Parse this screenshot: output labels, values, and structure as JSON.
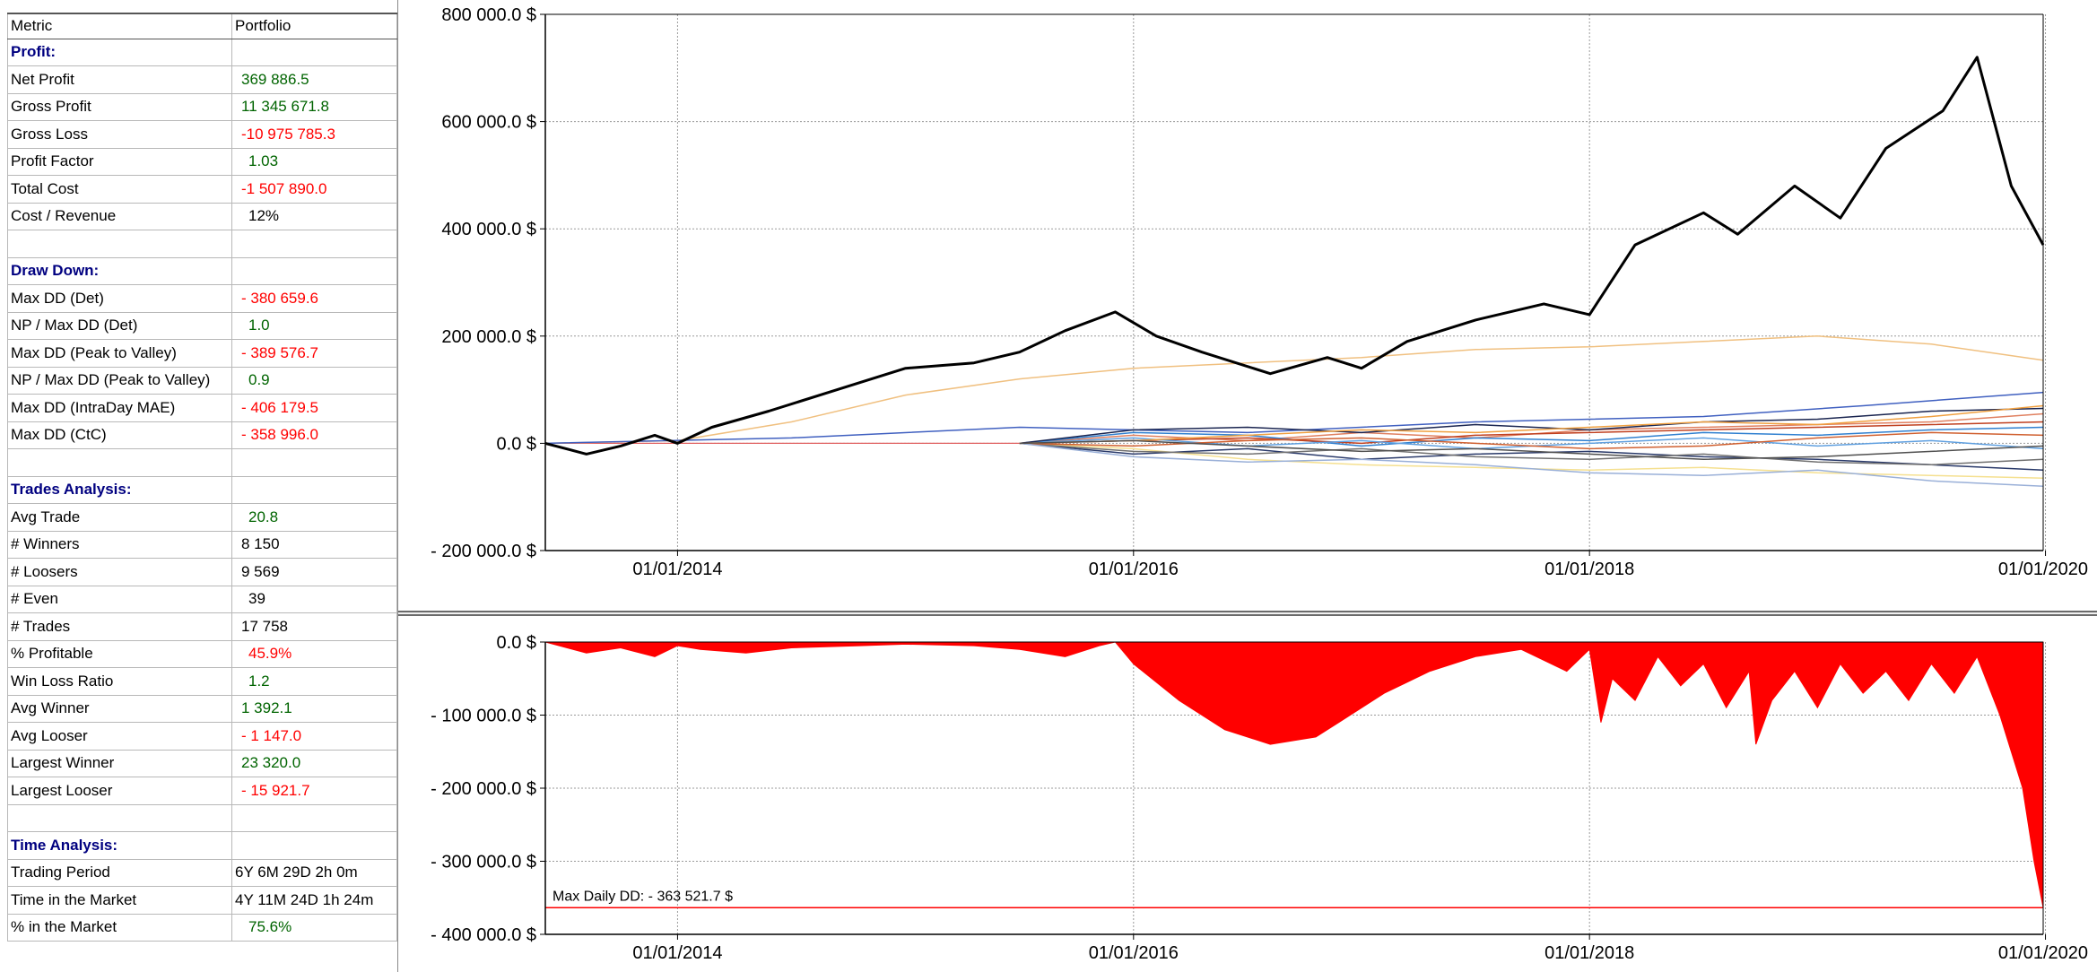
{
  "table": {
    "header": {
      "metric": "Metric",
      "portfolio": "Portfolio"
    },
    "rows": [
      {
        "type": "section",
        "label": "Profit:"
      },
      {
        "label": "Net Profit",
        "value": "369 886.5",
        "color": "green"
      },
      {
        "label": "Gross Profit",
        "value": "11 345 671.8",
        "color": "green"
      },
      {
        "label": "Gross Loss",
        "value": "-10 975 785.3",
        "color": "red"
      },
      {
        "label": "Profit Factor",
        "value": "1.03",
        "color": "green",
        "indent": true
      },
      {
        "label": "Total Cost",
        "value": "-1 507 890.0",
        "color": "red"
      },
      {
        "label": "Cost / Revenue",
        "value": "12%",
        "color": "black",
        "indent": true
      },
      {
        "type": "blank"
      },
      {
        "type": "section",
        "label": "Draw Down:"
      },
      {
        "label": "Max DD (Det)",
        "value": "- 380 659.6",
        "color": "red"
      },
      {
        "label": "NP / Max DD (Det)",
        "value": "1.0",
        "color": "green",
        "indent": true
      },
      {
        "label": "Max DD (Peak to Valley)",
        "value": "- 389 576.7",
        "color": "red"
      },
      {
        "label": "NP / Max DD (Peak to Valley)",
        "value": "0.9",
        "color": "green",
        "indent": true
      },
      {
        "label": "Max DD (IntraDay MAE)",
        "value": "- 406 179.5",
        "color": "red"
      },
      {
        "label": "Max DD (CtC)",
        "value": "- 358 996.0",
        "color": "red"
      },
      {
        "type": "blank"
      },
      {
        "type": "section",
        "label": "Trades Analysis:"
      },
      {
        "label": "Avg Trade",
        "value": "20.8",
        "color": "green",
        "indent": true
      },
      {
        "label": "# Winners",
        "value": "8 150",
        "color": "black"
      },
      {
        "label": "# Loosers",
        "value": "9 569",
        "color": "black"
      },
      {
        "label": "# Even",
        "value": "39",
        "color": "black",
        "indent": true
      },
      {
        "label": "# Trades",
        "value": "17 758",
        "color": "black"
      },
      {
        "label": "% Profitable",
        "value": "45.9%",
        "color": "red",
        "indent": true
      },
      {
        "label": "Win Loss Ratio",
        "value": "1.2",
        "color": "green",
        "indent": true
      },
      {
        "label": "Avg Winner",
        "value": "1 392.1",
        "color": "green"
      },
      {
        "label": "Avg Looser",
        "value": "- 1 147.0",
        "color": "red"
      },
      {
        "label": "Largest Winner",
        "value": "23 320.0",
        "color": "green"
      },
      {
        "label": "Largest Looser",
        "value": "- 15 921.7",
        "color": "red"
      },
      {
        "type": "blank"
      },
      {
        "type": "section",
        "label": "Time Analysis:"
      },
      {
        "label": "Trading Period",
        "value": "6Y 6M 29D 2h 0m",
        "color": "black",
        "plain": true
      },
      {
        "label": "Time in the Market",
        "value": "4Y 11M 24D 1h 24m",
        "color": "black",
        "plain": true
      },
      {
        "label": "% in the Market",
        "value": "75.6%",
        "color": "green",
        "indent": true
      }
    ]
  },
  "chart_data": [
    {
      "type": "line",
      "ylim": [
        -200000,
        800000
      ],
      "y_ticks": [
        "800 000.0 $",
        "600 000.0 $",
        "400 000.0 $",
        "200 000.0 $",
        "0.0 $",
        "- 200 000.0 $"
      ],
      "y_tick_values": [
        800000,
        600000,
        400000,
        200000,
        0,
        -200000
      ],
      "x_ticks": [
        "01/01/2014",
        "01/01/2016",
        "01/01/2018",
        "01/01/2020"
      ],
      "x_tick_values": [
        2014.0,
        2016.0,
        2018.0,
        2020.0
      ],
      "xlim": [
        2013.42,
        2019.99
      ],
      "grid": true,
      "series": [
        {
          "role": "portfolio",
          "color": "#000000",
          "x": [
            2013.42,
            2013.6,
            2013.75,
            2013.9,
            2014.0,
            2014.15,
            2014.4,
            2014.7,
            2015.0,
            2015.3,
            2015.5,
            2015.7,
            2015.92,
            2016.1,
            2016.3,
            2016.6,
            2016.85,
            2017.0,
            2017.2,
            2017.5,
            2017.8,
            2018.0,
            2018.2,
            2018.5,
            2018.65,
            2018.9,
            2019.1,
            2019.3,
            2019.55,
            2019.7,
            2019.85,
            2019.99
          ],
          "y": [
            0,
            -20000,
            -5000,
            15000,
            0,
            30000,
            60000,
            100000,
            140000,
            150000,
            170000,
            210000,
            245000,
            200000,
            170000,
            130000,
            160000,
            140000,
            190000,
            230000,
            260000,
            240000,
            370000,
            430000,
            390000,
            480000,
            420000,
            550000,
            620000,
            720000,
            480000,
            370000
          ]
        },
        {
          "color": "#f0c080",
          "x": [
            2013.42,
            2014.0,
            2014.5,
            2015.0,
            2015.5,
            2016.0,
            2016.5,
            2017.0,
            2017.5,
            2018.0,
            2018.5,
            2019.0,
            2019.5,
            2019.99
          ],
          "y": [
            0,
            5000,
            40000,
            90000,
            120000,
            140000,
            150000,
            160000,
            175000,
            180000,
            190000,
            200000,
            185000,
            155000
          ]
        },
        {
          "color": "#4060c0",
          "x": [
            2013.42,
            2014.5,
            2015.5,
            2016.5,
            2017.5,
            2018.5,
            2019.2,
            2019.99
          ],
          "y": [
            0,
            10000,
            30000,
            20000,
            40000,
            50000,
            70000,
            95000
          ]
        },
        {
          "color": "#2a3a6a",
          "x": [
            2015.5,
            2016.0,
            2016.5,
            2017.0,
            2017.5,
            2018.0,
            2018.5,
            2019.0,
            2019.5,
            2019.99
          ],
          "y": [
            0,
            -20000,
            -10000,
            -30000,
            -20000,
            -15000,
            -25000,
            -30000,
            -40000,
            -50000
          ]
        },
        {
          "color": "#e08060",
          "x": [
            2015.5,
            2016.0,
            2016.5,
            2017.0,
            2017.5,
            2018.0,
            2018.5,
            2019.0,
            2019.5,
            2019.99
          ],
          "y": [
            0,
            15000,
            5000,
            20000,
            10000,
            25000,
            30000,
            35000,
            40000,
            55000
          ]
        },
        {
          "color": "#f5e090",
          "x": [
            2015.5,
            2016.0,
            2016.5,
            2017.0,
            2017.5,
            2018.0,
            2018.5,
            2019.0,
            2019.5,
            2019.99
          ],
          "y": [
            0,
            -10000,
            -30000,
            -40000,
            -45000,
            -50000,
            -45000,
            -55000,
            -60000,
            -65000
          ]
        },
        {
          "color": "#3080d0",
          "x": [
            2015.5,
            2016.0,
            2016.5,
            2017.0,
            2017.5,
            2018.0,
            2018.5,
            2019.0,
            2019.5,
            2019.99
          ],
          "y": [
            0,
            20000,
            15000,
            -5000,
            10000,
            5000,
            20000,
            15000,
            25000,
            30000
          ]
        },
        {
          "color": "#c04020",
          "x": [
            2015.5,
            2016.0,
            2016.5,
            2017.0,
            2017.5,
            2018.0,
            2018.5,
            2019.0,
            2019.5,
            2019.99
          ],
          "y": [
            0,
            5000,
            10000,
            0,
            15000,
            20000,
            25000,
            30000,
            35000,
            40000
          ]
        },
        {
          "color": "#707070",
          "x": [
            2015.5,
            2016.0,
            2016.5,
            2017.0,
            2017.5,
            2018.0,
            2018.5,
            2019.0,
            2019.5,
            2019.99
          ],
          "y": [
            0,
            -15000,
            -20000,
            -10000,
            -25000,
            -30000,
            -20000,
            -35000,
            -40000,
            -30000
          ]
        },
        {
          "color": "#60a0e0",
          "x": [
            2015.5,
            2016.0,
            2016.5,
            2017.0,
            2017.5,
            2018.0,
            2018.5,
            2019.0,
            2019.5,
            2019.99
          ],
          "y": [
            0,
            10000,
            -5000,
            5000,
            -10000,
            0,
            10000,
            -5000,
            5000,
            -10000
          ]
        },
        {
          "color": "#1a2550",
          "x": [
            2015.5,
            2016.0,
            2016.5,
            2017.0,
            2017.5,
            2018.0,
            2018.5,
            2019.0,
            2019.5,
            2019.99
          ],
          "y": [
            0,
            25000,
            30000,
            20000,
            35000,
            25000,
            40000,
            45000,
            60000,
            65000
          ]
        },
        {
          "color": "#d06030",
          "x": [
            2015.5,
            2016.0,
            2016.5,
            2017.0,
            2017.5,
            2018.0,
            2018.5,
            2019.0,
            2019.5,
            2019.99
          ],
          "y": [
            0,
            -5000,
            5000,
            10000,
            0,
            -10000,
            -5000,
            10000,
            20000,
            15000
          ]
        },
        {
          "color": "#9ab0d8",
          "x": [
            2015.5,
            2016.0,
            2016.5,
            2017.0,
            2017.5,
            2018.0,
            2018.5,
            2019.0,
            2019.5,
            2019.99
          ],
          "y": [
            0,
            -25000,
            -35000,
            -30000,
            -40000,
            -55000,
            -60000,
            -50000,
            -70000,
            -80000
          ]
        },
        {
          "color": "#f0a040",
          "x": [
            2015.5,
            2016.0,
            2016.5,
            2017.0,
            2017.5,
            2018.0,
            2018.5,
            2019.0,
            2019.5,
            2019.99
          ],
          "y": [
            0,
            5000,
            15000,
            25000,
            20000,
            30000,
            40000,
            35000,
            50000,
            70000
          ]
        },
        {
          "color": "#505050",
          "x": [
            2015.5,
            2016.0,
            2016.5,
            2017.0,
            2017.5,
            2018.0,
            2018.5,
            2019.0,
            2019.5,
            2019.99
          ],
          "y": [
            0,
            5000,
            -5000,
            -15000,
            -10000,
            -20000,
            -30000,
            -25000,
            -15000,
            -5000
          ]
        }
      ]
    },
    {
      "type": "area",
      "ylim": [
        -400000,
        0
      ],
      "y_ticks": [
        "0.0 $",
        "- 100 000.0 $",
        "- 200 000.0 $",
        "- 300 000.0 $",
        "- 400 000.0 $"
      ],
      "y_tick_values": [
        0,
        -100000,
        -200000,
        -300000,
        -400000
      ],
      "x_ticks": [
        "01/01/2014",
        "01/01/2016",
        "01/01/2018",
        "01/01/2020"
      ],
      "x_tick_values": [
        2014.0,
        2016.0,
        2018.0,
        2020.0
      ],
      "xlim": [
        2013.42,
        2019.99
      ],
      "grid": true,
      "fill_color": "#ff0000",
      "annotation": "Max Daily DD: - 363 521.7 $",
      "annotation_value": -363521.7,
      "x": [
        2013.42,
        2013.6,
        2013.75,
        2013.9,
        2014.0,
        2014.1,
        2014.3,
        2014.5,
        2014.8,
        2015.0,
        2015.3,
        2015.5,
        2015.7,
        2015.85,
        2015.92,
        2016.0,
        2016.2,
        2016.4,
        2016.6,
        2016.8,
        2016.9,
        2017.1,
        2017.3,
        2017.5,
        2017.7,
        2017.9,
        2018.0,
        2018.05,
        2018.1,
        2018.2,
        2018.3,
        2018.4,
        2018.5,
        2018.6,
        2018.7,
        2018.73,
        2018.8,
        2018.9,
        2019.0,
        2019.1,
        2019.2,
        2019.3,
        2019.4,
        2019.5,
        2019.6,
        2019.7,
        2019.8,
        2019.9,
        2019.95,
        2019.99
      ],
      "y": [
        0,
        -15000,
        -8000,
        -20000,
        -5000,
        -10000,
        -15000,
        -8000,
        -5000,
        -3000,
        -5000,
        -10000,
        -20000,
        -5000,
        0,
        -30000,
        -80000,
        -120000,
        -140000,
        -130000,
        -110000,
        -70000,
        -40000,
        -20000,
        -10000,
        -40000,
        -10000,
        -110000,
        -50000,
        -80000,
        -20000,
        -60000,
        -30000,
        -90000,
        -40000,
        -140000,
        -80000,
        -40000,
        -90000,
        -30000,
        -70000,
        -40000,
        -80000,
        -30000,
        -70000,
        -20000,
        -100000,
        -200000,
        -300000,
        -363500
      ]
    }
  ]
}
